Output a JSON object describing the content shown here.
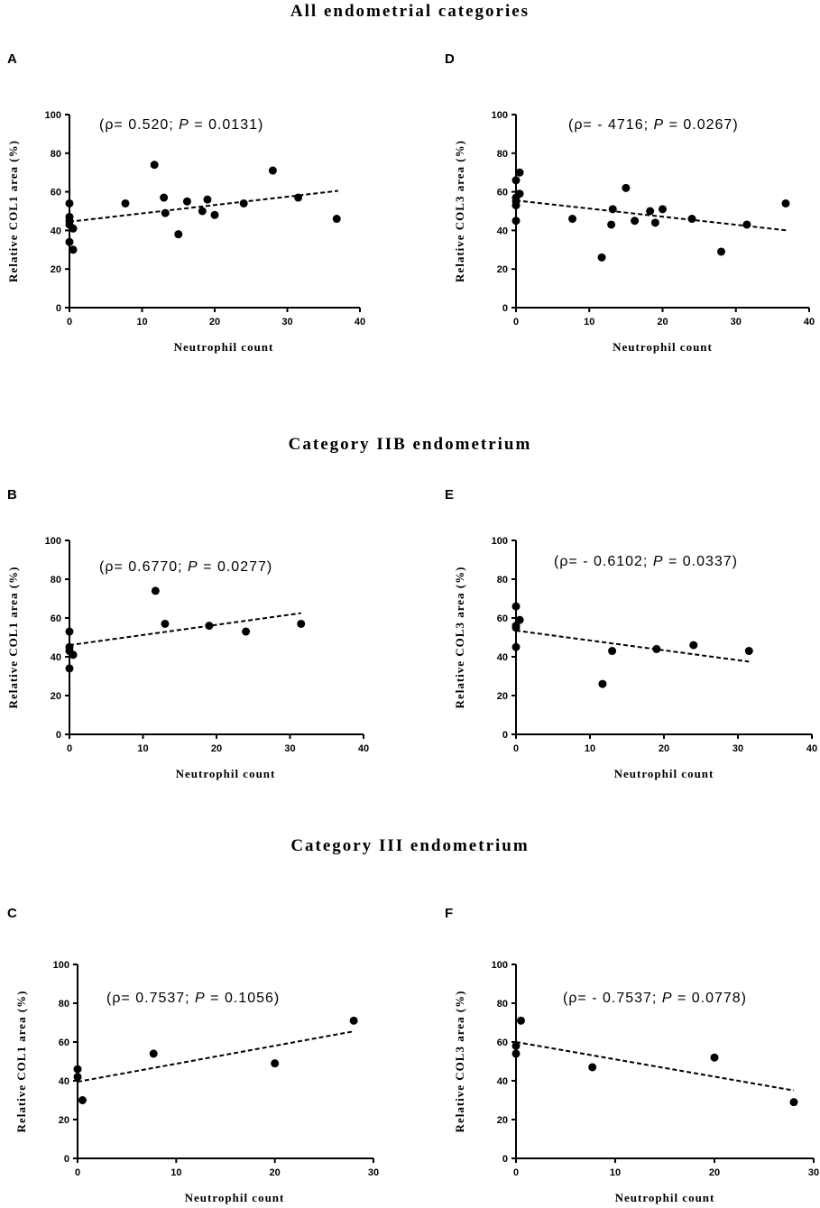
{
  "section_titles": [
    "All  endometrial categories",
    "Category  IIB endometrium",
    "Category  III endometrium"
  ],
  "chart_data": [
    {
      "panel": "A",
      "type": "scatter",
      "xlabel": "Neutrophil count",
      "ylabel": "Relative COL1 area (%)",
      "annotation_prefix": "(ρ= 0.520; ",
      "annotation_p": "P",
      "annotation_suffix": " = 0.0131)",
      "xlim": [
        0,
        40
      ],
      "xticks": [
        0,
        10,
        20,
        30,
        40
      ],
      "ylim": [
        0,
        100
      ],
      "yticks": [
        0,
        20,
        40,
        60,
        80,
        100
      ],
      "points": [
        [
          0,
          54
        ],
        [
          0,
          47
        ],
        [
          0,
          45
        ],
        [
          0,
          43
        ],
        [
          0,
          34
        ],
        [
          0.5,
          30
        ],
        [
          0.5,
          41
        ],
        [
          7.7,
          54
        ],
        [
          11.7,
          74
        ],
        [
          13,
          57
        ],
        [
          13.2,
          49
        ],
        [
          15,
          38
        ],
        [
          16.2,
          55
        ],
        [
          18.3,
          50
        ],
        [
          19,
          56
        ],
        [
          20,
          48
        ],
        [
          24,
          54
        ],
        [
          28,
          71
        ],
        [
          31.5,
          57
        ],
        [
          36.8,
          46
        ]
      ],
      "trend": [
        [
          0,
          44.5
        ],
        [
          37,
          60.5
        ]
      ]
    },
    {
      "panel": "D",
      "type": "scatter",
      "xlabel": "Neutrophil count",
      "ylabel": "Relative COL3 area (%)",
      "annotation_prefix": "(ρ= - 4716; ",
      "annotation_p": "P",
      "annotation_suffix": " = 0.0267)",
      "xlim": [
        0,
        40
      ],
      "xticks": [
        0,
        10,
        20,
        30,
        40
      ],
      "ylim": [
        0,
        100
      ],
      "yticks": [
        0,
        20,
        40,
        60,
        80,
        100
      ],
      "points": [
        [
          0,
          66
        ],
        [
          0,
          57
        ],
        [
          0,
          55
        ],
        [
          0,
          53
        ],
        [
          0,
          45
        ],
        [
          0.5,
          70
        ],
        [
          0.5,
          59
        ],
        [
          7.7,
          46
        ],
        [
          11.7,
          26
        ],
        [
          13,
          43
        ],
        [
          13.2,
          51
        ],
        [
          15,
          62
        ],
        [
          16.2,
          45
        ],
        [
          18.3,
          50
        ],
        [
          19,
          44
        ],
        [
          20,
          51
        ],
        [
          24,
          46
        ],
        [
          28,
          29
        ],
        [
          31.5,
          43
        ],
        [
          36.8,
          54
        ]
      ],
      "trend": [
        [
          0,
          55.5
        ],
        [
          37,
          40
        ]
      ]
    },
    {
      "panel": "B",
      "type": "scatter",
      "xlabel": "Neutrophil count",
      "ylabel": "Relative COL1 area (%)",
      "annotation_prefix": "(ρ= 0.6770; ",
      "annotation_p": "P",
      "annotation_suffix": " = 0.0277)",
      "xlim": [
        0,
        40
      ],
      "xticks": [
        0,
        10,
        20,
        30,
        40
      ],
      "ylim": [
        0,
        100
      ],
      "yticks": [
        0,
        20,
        40,
        60,
        80,
        100
      ],
      "points": [
        [
          0,
          53
        ],
        [
          0,
          45
        ],
        [
          0,
          43
        ],
        [
          0,
          34
        ],
        [
          0.5,
          41
        ],
        [
          11.7,
          74
        ],
        [
          13,
          57
        ],
        [
          19,
          56
        ],
        [
          24,
          53
        ],
        [
          31.5,
          57
        ]
      ],
      "trend": [
        [
          0,
          46
        ],
        [
          31.5,
          62.5
        ]
      ]
    },
    {
      "panel": "E",
      "type": "scatter",
      "xlabel": "Neutrophil count",
      "ylabel": "Relative COL3 area (%)",
      "annotation_prefix": "(ρ= - 0.6102; ",
      "annotation_p": "P",
      "annotation_suffix": " = 0.0337)",
      "xlim": [
        0,
        40
      ],
      "xticks": [
        0,
        10,
        20,
        30,
        40
      ],
      "ylim": [
        0,
        100
      ],
      "yticks": [
        0,
        20,
        40,
        60,
        80,
        100
      ],
      "points": [
        [
          0,
          66
        ],
        [
          0,
          56
        ],
        [
          0,
          55
        ],
        [
          0,
          45
        ],
        [
          0.5,
          59
        ],
        [
          11.7,
          26
        ],
        [
          13,
          43
        ],
        [
          19,
          44
        ],
        [
          24,
          46
        ],
        [
          31.5,
          43
        ]
      ],
      "trend": [
        [
          0,
          53.5
        ],
        [
          31.5,
          37.5
        ]
      ]
    },
    {
      "panel": "C",
      "type": "scatter",
      "xlabel": "Neutrophil count",
      "ylabel": "Relative COL1 area (%)",
      "annotation_prefix": "(ρ= 0.7537; ",
      "annotation_p": "P",
      "annotation_suffix": " = 0.1056)",
      "xlim": [
        0,
        30
      ],
      "xticks": [
        0,
        10,
        20,
        30
      ],
      "ylim": [
        0,
        100
      ],
      "yticks": [
        0,
        20,
        40,
        60,
        80,
        100
      ],
      "points": [
        [
          0,
          46
        ],
        [
          0,
          42
        ],
        [
          0.5,
          30
        ],
        [
          7.7,
          54
        ],
        [
          20,
          49
        ],
        [
          28,
          71
        ]
      ],
      "trend": [
        [
          0,
          39.5
        ],
        [
          28,
          65.5
        ]
      ]
    },
    {
      "panel": "F",
      "type": "scatter",
      "xlabel": "Neutrophil count",
      "ylabel": "Relative COL3 area (%)",
      "annotation_prefix": "(ρ= - 0.7537; ",
      "annotation_p": "P",
      "annotation_suffix": " = 0.0778)",
      "xlim": [
        0,
        30
      ],
      "xticks": [
        0,
        10,
        20,
        30
      ],
      "ylim": [
        0,
        100
      ],
      "yticks": [
        0,
        20,
        40,
        60,
        80,
        100
      ],
      "points": [
        [
          0,
          58
        ],
        [
          0,
          54
        ],
        [
          0.5,
          71
        ],
        [
          7.7,
          47
        ],
        [
          20,
          52
        ],
        [
          28,
          29
        ]
      ],
      "trend": [
        [
          0,
          60
        ],
        [
          28,
          35
        ]
      ]
    }
  ]
}
